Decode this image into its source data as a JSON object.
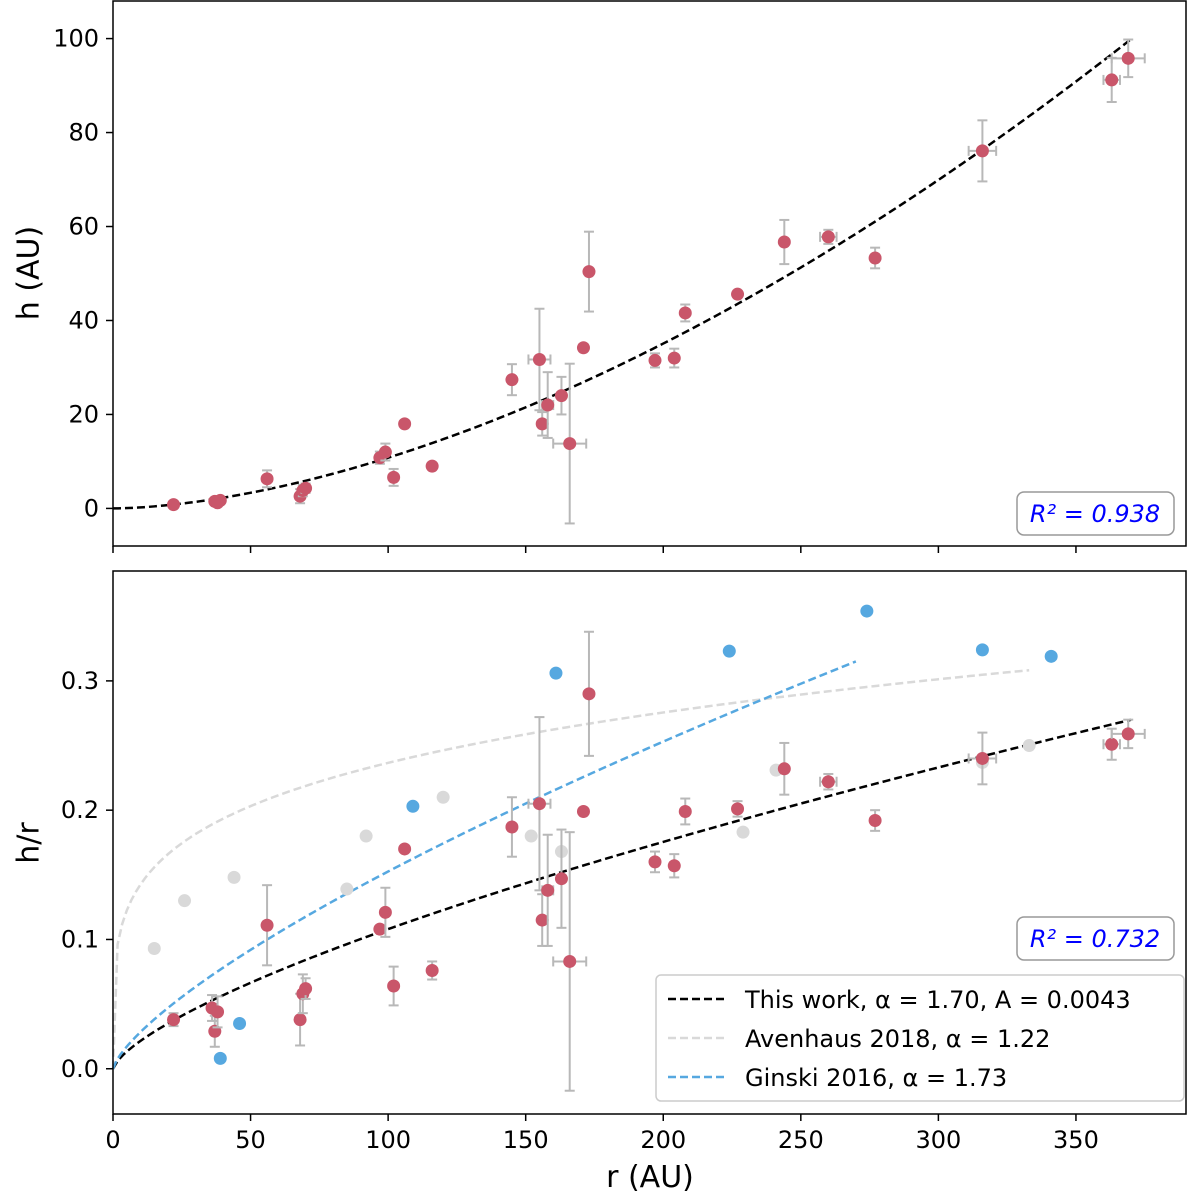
{
  "colors": {
    "data_points": "#c9566a",
    "error_bars": "#b8b8b8",
    "fit_line": "#000000",
    "avenhaus": "#d9d9d9",
    "ginski": "#56a8e0",
    "r2_text": "#0000ff",
    "background": "#ffffff"
  },
  "chart_data": [
    {
      "type": "scatter",
      "panel": "top",
      "xlabel": "r (AU)",
      "ylabel": "h (AU)",
      "xlim": [
        0,
        390
      ],
      "ylim": [
        -8,
        108
      ],
      "x_ticks": [
        0,
        50,
        100,
        150,
        200,
        250,
        300,
        350
      ],
      "y_ticks": [
        0,
        20,
        40,
        60,
        80,
        100
      ],
      "x_tick_labels_visible": false,
      "r2_label": "R² = 0.938",
      "grid": false,
      "series": [
        {
          "kind": "points",
          "x": [
            22,
            37,
            38,
            39,
            56,
            68,
            69,
            70,
            97,
            99,
            102,
            106,
            116,
            145,
            155,
            156,
            158,
            163,
            166,
            171,
            173,
            197,
            204,
            208,
            227,
            244,
            260,
            277,
            316,
            363,
            369
          ],
          "y": [
            0.8,
            1.5,
            1.2,
            1.7,
            6.3,
            2.6,
            3.8,
            4.3,
            10.8,
            12,
            6.6,
            18,
            9,
            27.4,
            31.7,
            18,
            22,
            24,
            13.8,
            34.2,
            50.4,
            31.5,
            32,
            41.6,
            45.6,
            56.7,
            57.8,
            53.3,
            76.1,
            91.2,
            95.8
          ],
          "yerr": [
            0.5,
            0.6,
            0.6,
            0.6,
            1.8,
            1.5,
            1.2,
            1.0,
            1.3,
            1.8,
            1.8,
            0,
            0,
            3.3,
            10.8,
            2.5,
            7,
            4,
            17,
            0,
            8.5,
            1.5,
            2,
            1.8,
            0,
            4.7,
            1.5,
            2.2,
            6.5,
            4.7,
            4
          ],
          "xerr": [
            0,
            0,
            0,
            0,
            0,
            0,
            0,
            0,
            0,
            0,
            0,
            0,
            0,
            0,
            4,
            0,
            2,
            0,
            6,
            0,
            0,
            0,
            0,
            0,
            0,
            0,
            3,
            0,
            5,
            3,
            6
          ]
        },
        {
          "kind": "fit",
          "name": "This work, α = 1.70, A = 0.0043",
          "style": "dashed",
          "alpha": 1.7,
          "A": 0.0043,
          "x_range": [
            0,
            370
          ]
        }
      ]
    },
    {
      "type": "scatter",
      "panel": "bottom",
      "xlabel": "r (AU)",
      "ylabel": "h/r",
      "xlim": [
        0,
        390
      ],
      "ylim": [
        -0.035,
        0.385
      ],
      "x_ticks": [
        0,
        50,
        100,
        150,
        200,
        250,
        300,
        350
      ],
      "y_ticks": [
        0.0,
        0.1,
        0.2,
        0.3
      ],
      "r2_label": "R² = 0.732",
      "legend_position": "lower right",
      "grid": false,
      "series": [
        {
          "kind": "points",
          "x": [
            22,
            36,
            37,
            38,
            56,
            68,
            69,
            70,
            97,
            99,
            102,
            106,
            116,
            145,
            155,
            156,
            158,
            163,
            166,
            171,
            173,
            197,
            204,
            208,
            227,
            244,
            260,
            277,
            316,
            363,
            369
          ],
          "y": [
            0.038,
            0.047,
            0.029,
            0.044,
            0.111,
            0.038,
            0.058,
            0.062,
            0.108,
            0.121,
            0.064,
            0.17,
            0.076,
            0.187,
            0.205,
            0.115,
            0.138,
            0.147,
            0.083,
            0.199,
            0.29,
            0.16,
            0.157,
            0.199,
            0.201,
            0.232,
            0.222,
            0.192,
            0.24,
            0.251,
            0.259
          ],
          "yerr": [
            0.005,
            0.01,
            0.012,
            0.012,
            0.031,
            0.02,
            0.015,
            0.008,
            0,
            0.019,
            0.015,
            0,
            0.007,
            0.023,
            0.067,
            0.02,
            0.043,
            0.038,
            0.1,
            0,
            0.048,
            0.008,
            0.009,
            0.01,
            0.006,
            0.02,
            0.006,
            0.008,
            0.02,
            0.012,
            0.011
          ],
          "xerr": [
            0,
            0,
            0,
            0,
            0,
            0,
            0,
            0,
            0,
            0,
            0,
            0,
            0,
            0,
            4,
            0,
            2,
            0,
            6,
            0,
            0,
            0,
            0,
            0,
            0,
            0,
            3,
            0,
            5,
            3,
            6
          ]
        },
        {
          "kind": "avenhaus_points",
          "x": [
            15,
            26,
            44,
            85,
            92,
            120,
            152,
            163,
            229,
            241,
            316,
            333
          ],
          "y": [
            0.093,
            0.13,
            0.148,
            0.139,
            0.18,
            0.21,
            0.18,
            0.168,
            0.183,
            0.231,
            0.237,
            0.25
          ]
        },
        {
          "kind": "ginski_points",
          "x": [
            39,
            46,
            109,
            161,
            224,
            274,
            316,
            341
          ],
          "y": [
            0.008,
            0.035,
            0.203,
            0.306,
            0.323,
            0.354,
            0.324,
            0.319
          ]
        },
        {
          "kind": "fit",
          "name": "This work, α = 1.70, A = 0.0043",
          "style": "dashed",
          "alpha": 1.7,
          "A": 0.0043,
          "x_range": [
            0,
            370
          ]
        },
        {
          "kind": "fit",
          "name": "Avenhaus 2018, α = 1.22",
          "style": "dashed",
          "alpha": 1.22,
          "A": 0.0859,
          "x_range": [
            0,
            333
          ]
        },
        {
          "kind": "fit",
          "name": "Ginski 2016, α = 1.73",
          "style": "dashed",
          "alpha": 1.73,
          "A": 0.00529,
          "x_range": [
            0,
            270
          ]
        }
      ]
    }
  ]
}
